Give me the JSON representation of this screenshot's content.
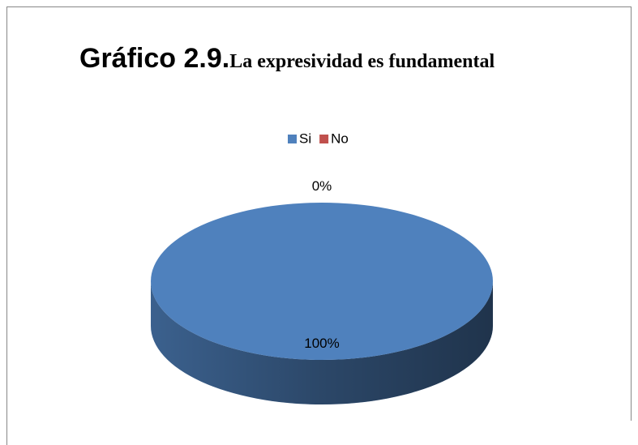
{
  "chart_data": {
    "type": "pie",
    "title": "Gráfico 2.9.",
    "subtitle": "La expresividad es fundamental",
    "categories": [
      "Si",
      "No"
    ],
    "values": [
      100,
      0
    ],
    "value_labels": [
      "100%",
      "0%"
    ],
    "colors": [
      "#4f81bd",
      "#c0504d"
    ],
    "legend": "top"
  }
}
